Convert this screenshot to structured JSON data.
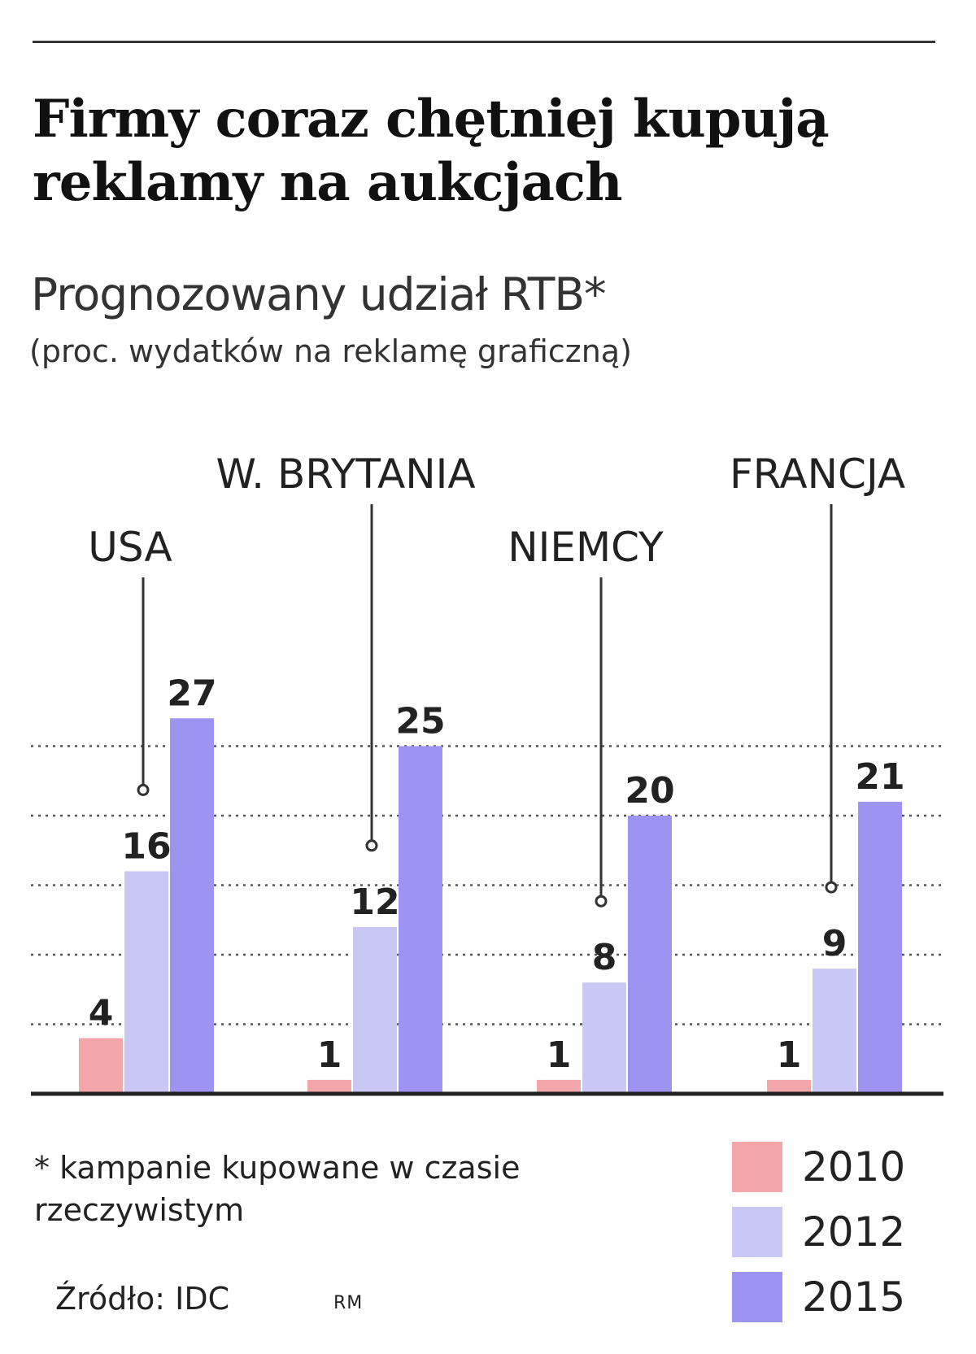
{
  "title": "Firmy coraz chętniej kupują reklamy na aukcjach",
  "subtitle": "Prognozowany udział RTB*",
  "subtitle2": "(proc. wydatków na reklamę graficzną)",
  "footnote": "* kampanie kupowane w czasie rzeczywistym",
  "source": "Źródło: IDC",
  "author": "RM",
  "colors": {
    "2010": "#f2a6aa",
    "2012": "#c9c8f4",
    "2015": "#9d93f1"
  },
  "chart_data": {
    "type": "bar",
    "categories": [
      "USA",
      "W. BRYTANIA",
      "NIEMCY",
      "FRANCJA"
    ],
    "series": [
      {
        "name": "2010",
        "values": [
          4,
          1,
          1,
          1
        ]
      },
      {
        "name": "2012",
        "values": [
          16,
          12,
          8,
          9
        ]
      },
      {
        "name": "2015",
        "values": [
          27,
          25,
          20,
          21
        ]
      }
    ],
    "ylim": [
      0,
      30
    ],
    "grid": true,
    "legend": "bottom-right",
    "xlabel": "",
    "ylabel": ""
  }
}
